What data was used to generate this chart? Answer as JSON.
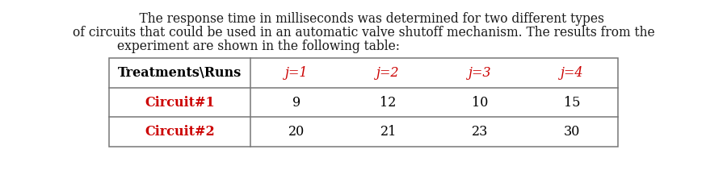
{
  "line1": "    The response time in milliseconds was determined for two different types",
  "line2": "of circuits that could be used in an automatic valve shutoff mechanism. The results from the",
  "line3": "experiment are shown in the following table:",
  "table_header": [
    "Treatments\\Runs",
    "j=1",
    "j=2",
    "j=3",
    "j=4"
  ],
  "table_rows": [
    [
      "Circuit#1",
      "9",
      "12",
      "10",
      "15"
    ],
    [
      "Circuit#2",
      "20",
      "21",
      "23",
      "30"
    ]
  ],
  "header_text_color": "#000000",
  "col_header_color": "#cc0000",
  "row_label_color": "#cc0000",
  "data_color": "#000000",
  "bg_color": "#ffffff",
  "text_font_size": 11.2,
  "table_font_size": 11.5,
  "line_color": "#777777"
}
